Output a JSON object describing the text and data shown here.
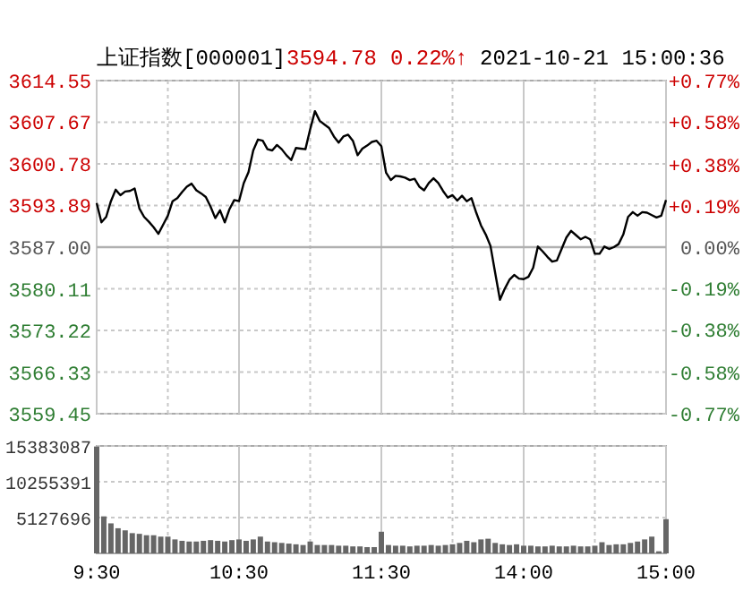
{
  "chart_data": [
    {
      "type": "line",
      "title": "上证指数[000001]",
      "annotations": [
        "3594.78",
        "0.22%↑",
        "2021-10-21 15:00:36"
      ],
      "categories": [
        null,
        null,
        null,
        null,
        null,
        null,
        null,
        null,
        null,
        null,
        null,
        null,
        null,
        null,
        null,
        null,
        null,
        null,
        null,
        null,
        null,
        null,
        null,
        null,
        null,
        null,
        null,
        null,
        null,
        null,
        null,
        null,
        null,
        null,
        null,
        null,
        null,
        null,
        null,
        null,
        null,
        null,
        null,
        null,
        null,
        null,
        null,
        null,
        null,
        null,
        null,
        null,
        null,
        null,
        null,
        null,
        null,
        null,
        null,
        null,
        null,
        null,
        null,
        null,
        null,
        null,
        null,
        null,
        null,
        null,
        null,
        null,
        null,
        null,
        null,
        null,
        null,
        null,
        null,
        null,
        null,
        null,
        null,
        null,
        null,
        null,
        null,
        null,
        null,
        null,
        null,
        null,
        null,
        null,
        null,
        null,
        null,
        null,
        null,
        null,
        null,
        null,
        null,
        null,
        null,
        null,
        null,
        null,
        null,
        null,
        null,
        null,
        null,
        null,
        null,
        null,
        null,
        null,
        null,
        null,
        null
      ],
      "series": [
        {
          "color": "#000000",
          "values": [
            3594.3,
            3591.1,
            3592.0,
            3594.6,
            3596.5,
            3595.6,
            3596.2,
            3596.3,
            3596.7,
            3593.4,
            3592.0,
            3591.2,
            3590.3,
            3589.2,
            3590.7,
            3592.2,
            3594.6,
            3595.1,
            3596.1,
            3597.0,
            3597.5,
            3596.4,
            3595.9,
            3595.3,
            3593.7,
            3591.8,
            3593.1,
            3591.1,
            3593.3,
            3594.8,
            3594.6,
            3597.6,
            3599.4,
            3603.0,
            3604.8,
            3604.6,
            3603.2,
            3603.0,
            3603.9,
            3603.2,
            3602.2,
            3601.4,
            3603.4,
            3603.3,
            3603.2,
            3606.5,
            3609.5,
            3607.9,
            3607.3,
            3606.7,
            3605.3,
            3604.3,
            3605.3,
            3605.6,
            3604.6,
            3602.2,
            3603.3,
            3603.8,
            3604.4,
            3604.6,
            3603.7,
            3599.3,
            3598.1,
            3598.8,
            3598.7,
            3598.5,
            3598.1,
            3598.3,
            3597.0,
            3596.4,
            3597.6,
            3598.4,
            3597.6,
            3596.3,
            3595.2,
            3595.6,
            3594.7,
            3595.5,
            3594.6,
            3595.1,
            3592.7,
            3590.6,
            3589.1,
            3587.2,
            3582.7,
            3578.3,
            3580.1,
            3581.6,
            3582.4,
            3581.8,
            3581.7,
            3582.1,
            3583.6,
            3587.1,
            3586.3,
            3585.4,
            3584.6,
            3584.8,
            3586.7,
            3588.6,
            3589.7,
            3589.0,
            3588.3,
            3588.7,
            3588.3,
            3585.9,
            3585.9,
            3587.1,
            3586.7,
            3587.0,
            3587.5,
            3589.1,
            3592.0,
            3592.8,
            3592.2,
            3592.8,
            3592.7,
            3592.3,
            3591.9,
            3592.2,
            3594.8
          ]
        }
      ],
      "ylim": [
        3559.45,
        3614.55
      ],
      "yticks": [
        3614.55,
        3607.67,
        3600.78,
        3593.89,
        {
          "value": 3587,
          "label": "3587.00"
        },
        3580.11,
        3573.22,
        3566.33,
        3559.45
      ],
      "y2lim": [
        -0.77,
        0.77
      ],
      "y2ticks": [
        {
          "value": 0.77,
          "label": "+0.77%"
        },
        {
          "value": 0.58,
          "label": "+0.58%"
        },
        {
          "value": 0.38,
          "label": "+0.38%"
        },
        {
          "value": 0.19,
          "label": "+0.19%"
        },
        {
          "value": 0,
          "label": "0.00%"
        },
        {
          "value": -0.19,
          "label": "-0.19%"
        },
        {
          "value": -0.38,
          "label": "-0.38%"
        },
        {
          "value": -0.58,
          "label": "-0.58%"
        },
        {
          "value": -0.77,
          "label": "-0.77%"
        }
      ],
      "ref_lines": [
        {
          "axis": "y",
          "value": 3587,
          "color": "#b0b0b0"
        }
      ],
      "grid": true
    },
    {
      "type": "bar",
      "color": "#666666",
      "categories": [
        "9:30",
        null,
        null,
        null,
        null,
        null,
        null,
        null,
        null,
        null,
        null,
        null,
        null,
        null,
        null,
        null,
        null,
        null,
        null,
        null,
        "10:30",
        null,
        null,
        null,
        null,
        null,
        null,
        null,
        null,
        null,
        null,
        null,
        null,
        null,
        null,
        null,
        null,
        null,
        null,
        null,
        "11:30",
        null,
        null,
        null,
        null,
        null,
        null,
        null,
        null,
        null,
        null,
        null,
        null,
        null,
        null,
        null,
        null,
        null,
        null,
        null,
        "14:00",
        null,
        null,
        null,
        null,
        null,
        null,
        null,
        null,
        null,
        null,
        null,
        null,
        null,
        null,
        null,
        null,
        null,
        null,
        null,
        "15:00"
      ],
      "values": [
        15300000,
        5300000,
        4300000,
        3600000,
        3300000,
        2900000,
        2800000,
        2600000,
        2600000,
        2400000,
        2400000,
        2000000,
        1800000,
        1700000,
        1700000,
        1800000,
        1900000,
        1800000,
        1700000,
        1900000,
        2000000,
        1800000,
        2000000,
        2400000,
        1700000,
        1600000,
        1500000,
        1400000,
        1300000,
        1200000,
        1700000,
        1200000,
        1200000,
        1200000,
        1100000,
        1100000,
        1000000,
        1000000,
        900000,
        900000,
        3100000,
        1200000,
        1100000,
        1100000,
        1000000,
        1100000,
        1100000,
        1200000,
        1100000,
        1200000,
        1300000,
        1500000,
        1800000,
        1600000,
        2000000,
        2100000,
        1500000,
        1300000,
        1200000,
        1300000,
        1100000,
        1100000,
        1000000,
        1000000,
        1100000,
        1000000,
        1000000,
        1100000,
        1000000,
        1000000,
        1100000,
        1600000,
        1200000,
        1300000,
        1300000,
        1500000,
        1700000,
        2000000,
        2400000,
        300000,
        4900000
      ],
      "ylim": [
        0,
        15383087
      ],
      "yticks": [
        5127696,
        10255391,
        15383087
      ],
      "grid": true
    }
  ]
}
